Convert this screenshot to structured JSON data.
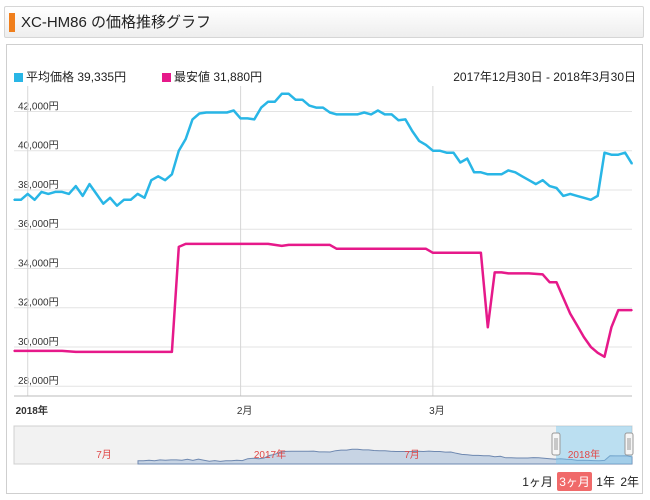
{
  "header": {
    "title": "XC-HM86 の価格推移グラフ",
    "accent_color": "#f07f1c"
  },
  "legend": {
    "avg_label": "平均価格",
    "avg_value": "39,335円",
    "avg_color": "#29b6e6",
    "min_label": "最安値",
    "min_value": "31,880円",
    "min_color": "#e6198a"
  },
  "date_range": "2017年12月30日 - 2018年3月30日",
  "range_buttons": {
    "items": [
      {
        "label": "1ヶ月",
        "active": false
      },
      {
        "label": "3ヶ月",
        "active": true
      },
      {
        "label": "1年",
        "active": false
      },
      {
        "label": "2年",
        "active": false
      }
    ]
  },
  "navigator": {
    "labels": [
      "7月",
      "2017年",
      "7月",
      "2018年"
    ]
  },
  "chart_data": {
    "type": "line",
    "ylim": [
      27500,
      43300
    ],
    "yticks": [
      "28,000円",
      "30,000円",
      "32,000円",
      "34,000円",
      "36,000円",
      "38,000円",
      "40,000円",
      "42,000円"
    ],
    "ytick_values": [
      28000,
      30000,
      32000,
      34000,
      36000,
      38000,
      40000,
      42000
    ],
    "xlim": [
      "2017-12-30",
      "2018-03-30"
    ],
    "xticks": [
      {
        "label": "2018年",
        "date": "2018-01-01"
      },
      {
        "label": "2月",
        "date": "2018-02-01"
      },
      {
        "label": "3月",
        "date": "2018-03-01"
      }
    ],
    "series": [
      {
        "name": "平均価格",
        "color": "#29b6e6",
        "points": [
          [
            "2017-12-30",
            37500
          ],
          [
            "2017-12-31",
            37500
          ],
          [
            "2018-01-01",
            37800
          ],
          [
            "2018-01-02",
            37500
          ],
          [
            "2018-01-03",
            37900
          ],
          [
            "2018-01-04",
            37800
          ],
          [
            "2018-01-05",
            37900
          ],
          [
            "2018-01-06",
            37900
          ],
          [
            "2018-01-07",
            37800
          ],
          [
            "2018-01-08",
            38200
          ],
          [
            "2018-01-09",
            37700
          ],
          [
            "2018-01-10",
            38300
          ],
          [
            "2018-01-11",
            37800
          ],
          [
            "2018-01-12",
            37300
          ],
          [
            "2018-01-13",
            37600
          ],
          [
            "2018-01-14",
            37200
          ],
          [
            "2018-01-15",
            37500
          ],
          [
            "2018-01-16",
            37500
          ],
          [
            "2018-01-17",
            37800
          ],
          [
            "2018-01-18",
            37600
          ],
          [
            "2018-01-19",
            38500
          ],
          [
            "2018-01-20",
            38700
          ],
          [
            "2018-01-21",
            38500
          ],
          [
            "2018-01-22",
            38800
          ],
          [
            "2018-01-23",
            40000
          ],
          [
            "2018-01-24",
            40600
          ],
          [
            "2018-01-25",
            41600
          ],
          [
            "2018-01-26",
            41900
          ],
          [
            "2018-01-27",
            41950
          ],
          [
            "2018-01-28",
            41950
          ],
          [
            "2018-01-29",
            41950
          ],
          [
            "2018-01-30",
            41950
          ],
          [
            "2018-01-31",
            42050
          ],
          [
            "2018-02-01",
            41650
          ],
          [
            "2018-02-02",
            41650
          ],
          [
            "2018-02-03",
            41600
          ],
          [
            "2018-02-04",
            42200
          ],
          [
            "2018-02-05",
            42500
          ],
          [
            "2018-02-06",
            42500
          ],
          [
            "2018-02-07",
            42900
          ],
          [
            "2018-02-08",
            42900
          ],
          [
            "2018-02-09",
            42600
          ],
          [
            "2018-02-10",
            42600
          ],
          [
            "2018-02-11",
            42300
          ],
          [
            "2018-02-12",
            42200
          ],
          [
            "2018-02-13",
            42200
          ],
          [
            "2018-02-14",
            41950
          ],
          [
            "2018-02-15",
            41850
          ],
          [
            "2018-02-16",
            41850
          ],
          [
            "2018-02-17",
            41850
          ],
          [
            "2018-02-18",
            41850
          ],
          [
            "2018-02-19",
            41950
          ],
          [
            "2018-02-20",
            41850
          ],
          [
            "2018-02-21",
            42050
          ],
          [
            "2018-02-22",
            41850
          ],
          [
            "2018-02-23",
            41850
          ],
          [
            "2018-02-24",
            41550
          ],
          [
            "2018-02-25",
            41600
          ],
          [
            "2018-02-26",
            41000
          ],
          [
            "2018-02-27",
            40500
          ],
          [
            "2018-02-28",
            40300
          ],
          [
            "2018-03-01",
            40000
          ],
          [
            "2018-03-02",
            40000
          ],
          [
            "2018-03-03",
            39900
          ],
          [
            "2018-03-04",
            39900
          ],
          [
            "2018-03-05",
            39400
          ],
          [
            "2018-03-06",
            39600
          ],
          [
            "2018-03-07",
            38900
          ],
          [
            "2018-03-08",
            38900
          ],
          [
            "2018-03-09",
            38800
          ],
          [
            "2018-03-10",
            38800
          ],
          [
            "2018-03-11",
            38800
          ],
          [
            "2018-03-12",
            39000
          ],
          [
            "2018-03-13",
            38900
          ],
          [
            "2018-03-14",
            38700
          ],
          [
            "2018-03-15",
            38500
          ],
          [
            "2018-03-16",
            38300
          ],
          [
            "2018-03-17",
            38500
          ],
          [
            "2018-03-18",
            38200
          ],
          [
            "2018-03-19",
            38100
          ],
          [
            "2018-03-20",
            37700
          ],
          [
            "2018-03-21",
            37800
          ],
          [
            "2018-03-22",
            37700
          ],
          [
            "2018-03-23",
            37600
          ],
          [
            "2018-03-24",
            37500
          ],
          [
            "2018-03-25",
            37700
          ],
          [
            "2018-03-26",
            39900
          ],
          [
            "2018-03-27",
            39800
          ],
          [
            "2018-03-28",
            39800
          ],
          [
            "2018-03-29",
            39900
          ],
          [
            "2018-03-30",
            39335
          ]
        ]
      },
      {
        "name": "最安値",
        "color": "#e6198a",
        "points": [
          [
            "2017-12-30",
            29800
          ],
          [
            "2018-01-06",
            29800
          ],
          [
            "2018-01-08",
            29750
          ],
          [
            "2018-01-22",
            29750
          ],
          [
            "2018-01-23",
            35100
          ],
          [
            "2018-01-24",
            35250
          ],
          [
            "2018-02-05",
            35250
          ],
          [
            "2018-02-07",
            35150
          ],
          [
            "2018-02-08",
            35200
          ],
          [
            "2018-02-14",
            35200
          ],
          [
            "2018-02-15",
            35000
          ],
          [
            "2018-02-28",
            35000
          ],
          [
            "2018-03-01",
            34800
          ],
          [
            "2018-03-08",
            34800
          ],
          [
            "2018-03-09",
            31000
          ],
          [
            "2018-03-10",
            33800
          ],
          [
            "2018-03-11",
            33800
          ],
          [
            "2018-03-12",
            33750
          ],
          [
            "2018-03-15",
            33750
          ],
          [
            "2018-03-17",
            33700
          ],
          [
            "2018-03-18",
            33300
          ],
          [
            "2018-03-19",
            33300
          ],
          [
            "2018-03-20",
            32500
          ],
          [
            "2018-03-21",
            31700
          ],
          [
            "2018-03-22",
            31100
          ],
          [
            "2018-03-23",
            30500
          ],
          [
            "2018-03-24",
            30000
          ],
          [
            "2018-03-25",
            29700
          ],
          [
            "2018-03-26",
            29500
          ],
          [
            "2018-03-27",
            31000
          ],
          [
            "2018-03-28",
            31880
          ],
          [
            "2018-03-30",
            31880
          ]
        ]
      }
    ]
  }
}
